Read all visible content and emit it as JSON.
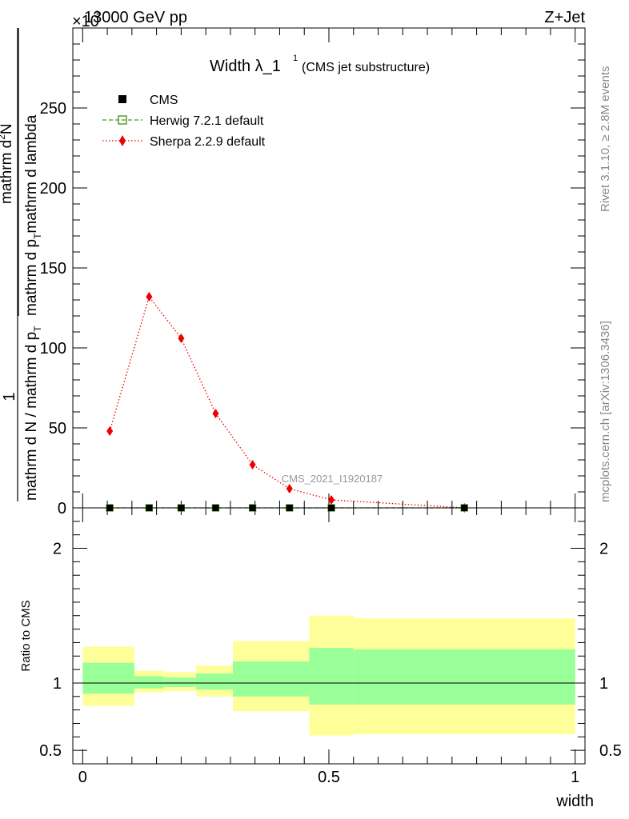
{
  "header": {
    "energy_label": "13000 GeV pp",
    "process_label": "Z+Jet",
    "multiplier_label": "×10",
    "multiplier_exp": "3"
  },
  "side_labels": {
    "rivet": "Rivet 3.1.10, ≥ 2.8M events",
    "site": "mcplots.cern.ch [arXiv:1306.3436]"
  },
  "watermark": "CMS_2021_I1920187",
  "chart_data": [
    {
      "type": "line",
      "title": "Width λ_1",
      "title_sup": "1",
      "subtitle": "(CMS jet substructure)",
      "ylabel_top": "1",
      "ylabel_num": "mathrm d",
      "ylabel_num_sup": "2",
      "ylabel_num_rest": "N",
      "ylabel_den1": "mathrm d p",
      "ylabel_den1_sub": "T",
      "ylabel_den1_rest": "mathrm d lambda",
      "ylabel_bottom": "mathrm d N / mathrm d p",
      "ylabel_bottom_sub": "T",
      "ylim": [
        0,
        300
      ],
      "yscale_multiplier": 1000,
      "yticks": [
        0,
        50,
        100,
        150,
        200,
        250
      ],
      "xlim": [
        -0.02,
        1.02
      ],
      "legend_position": "top-left",
      "legend": [
        {
          "name": "CMS",
          "color": "#000000",
          "marker": "square-filled"
        },
        {
          "name": "Herwig 7.2.1 default",
          "color": "#4a9a1a",
          "marker": "square-open",
          "line": "dashed"
        },
        {
          "name": "Sherpa 2.2.9 default",
          "color": "#ee0000",
          "marker": "diamond",
          "line": "dotted"
        }
      ],
      "series": [
        {
          "name": "CMS",
          "x": [
            0.055,
            0.135,
            0.2,
            0.27,
            0.345,
            0.42,
            0.505,
            0.775
          ],
          "y": [
            0,
            0,
            0,
            0,
            0,
            0,
            0,
            0
          ]
        },
        {
          "name": "Herwig 7.2.1 default",
          "x": [
            0.055,
            0.135,
            0.2,
            0.27,
            0.345,
            0.42,
            0.505,
            0.775
          ],
          "y": [
            0,
            0,
            0,
            0,
            0,
            0,
            0,
            0
          ]
        },
        {
          "name": "Sherpa 2.2.9 default",
          "x": [
            0.055,
            0.135,
            0.2,
            0.27,
            0.345,
            0.42,
            0.505,
            0.775
          ],
          "y": [
            48,
            132,
            106,
            59,
            27,
            12,
            5,
            0
          ]
        }
      ]
    },
    {
      "type": "area",
      "ylabel": "Ratio to CMS",
      "xlabel": "width",
      "ylim": [
        0.4,
        2.3
      ],
      "yticks": [
        0.5,
        1,
        2
      ],
      "xticks": [
        0,
        0.5,
        1
      ],
      "xlim": [
        -0.02,
        1.02
      ],
      "reference_line": 1,
      "bins": [
        {
          "x0": 0.0,
          "x1": 0.105,
          "inner": [
            0.92,
            1.15
          ],
          "outer": [
            0.83,
            1.27
          ]
        },
        {
          "x0": 0.105,
          "x1": 0.165,
          "inner": [
            0.96,
            1.05
          ],
          "outer": [
            0.93,
            1.09
          ]
        },
        {
          "x0": 0.165,
          "x1": 0.23,
          "inner": [
            0.97,
            1.04
          ],
          "outer": [
            0.94,
            1.08
          ]
        },
        {
          "x0": 0.23,
          "x1": 0.305,
          "inner": [
            0.95,
            1.07
          ],
          "outer": [
            0.9,
            1.13
          ]
        },
        {
          "x0": 0.305,
          "x1": 0.46,
          "inner": [
            0.9,
            1.16
          ],
          "outer": [
            0.79,
            1.31
          ]
        },
        {
          "x0": 0.46,
          "x1": 0.55,
          "inner": [
            0.84,
            1.26
          ],
          "outer": [
            0.61,
            1.5
          ]
        },
        {
          "x0": 0.55,
          "x1": 1.0,
          "inner": [
            0.84,
            1.25
          ],
          "outer": [
            0.62,
            1.48
          ]
        }
      ],
      "inner_color": "#99ff99",
      "outer_color": "#ffff99"
    }
  ]
}
